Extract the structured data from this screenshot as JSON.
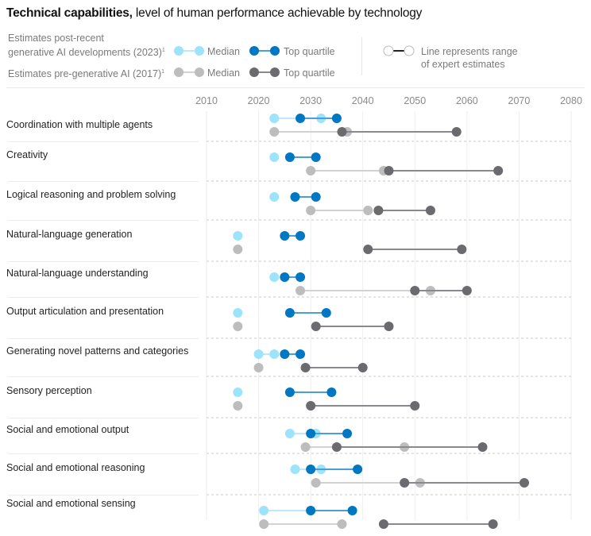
{
  "title": {
    "bold": "Technical capabilities,",
    "rest": " level of human performance achievable by technology"
  },
  "legend": {
    "post_label_line1": "Estimates post-recent",
    "post_label_line2": "generative AI developments (2023)",
    "pre_label": "Estimates pre-generative AI (2017)",
    "footnote": "1",
    "median": "Median",
    "top_quartile": "Top quartile",
    "range_line1": "Line represents range",
    "range_line2": "of expert estimates"
  },
  "colors": {
    "median_2023": "#9de3fb",
    "top_2023": "#0077c2",
    "median_2017": "#bdbdbe",
    "top_2017": "#6b6b6f",
    "line_2023_median": "#bde9fa",
    "line_2023_top": "#4a9fd6",
    "line_2017_median": "#d2d2d2",
    "line_2017_top": "#8a8a8e"
  },
  "chart_data": {
    "type": "dumbbell",
    "title": "Technical capabilities, level of human performance achievable by technology",
    "xlabel": "",
    "ylabel": "",
    "xlim": [
      2010,
      2080
    ],
    "xticks": [
      2010,
      2020,
      2030,
      2040,
      2050,
      2060,
      2070,
      2080
    ],
    "grid": true,
    "legend_position": "top",
    "series_names": [
      "2023 Median",
      "2023 Top quartile",
      "2017 Median",
      "2017 Top quartile"
    ],
    "categories": [
      "Coordination with multiple agents",
      "Creativity",
      "Logical reasoning and problem solving",
      "Natural-language generation",
      "Natural-language understanding",
      "Output articulation and presentation",
      "Generating novel patterns and categories",
      "Sensory perception",
      "Social and emotional output",
      "Social and emotional reasoning",
      "Social and emotional sensing"
    ],
    "rows": [
      {
        "e2023": {
          "median": [
            2023,
            2032
          ],
          "top": [
            2028,
            2035
          ]
        },
        "e2017": {
          "median": [
            2023,
            2037
          ],
          "top": [
            2036,
            2058
          ]
        }
      },
      {
        "e2023": {
          "median": [
            2023,
            2023
          ],
          "top": [
            2026,
            2031
          ]
        },
        "e2017": {
          "median": [
            2030,
            2044
          ],
          "top": [
            2045,
            2066
          ]
        }
      },
      {
        "e2023": {
          "median": [
            2023,
            2023
          ],
          "top": [
            2027,
            2031
          ]
        },
        "e2017": {
          "median": [
            2030,
            2041
          ],
          "top": [
            2043,
            2053
          ]
        }
      },
      {
        "e2023": {
          "median": [
            2016,
            2016
          ],
          "top": [
            2025,
            2028
          ]
        },
        "e2017": {
          "median": [
            2016,
            2016
          ],
          "top": [
            2041,
            2059
          ]
        }
      },
      {
        "e2023": {
          "median": [
            2023,
            2023
          ],
          "top": [
            2025,
            2028
          ]
        },
        "e2017": {
          "median": [
            2028,
            2053
          ],
          "top": [
            2050,
            2060
          ]
        }
      },
      {
        "e2023": {
          "median": [
            2016,
            2016
          ],
          "top": [
            2026,
            2033
          ]
        },
        "e2017": {
          "median": [
            2016,
            2016
          ],
          "top": [
            2031,
            2045
          ]
        }
      },
      {
        "e2023": {
          "median": [
            2020,
            2023
          ],
          "top": [
            2025,
            2028
          ]
        },
        "e2017": {
          "median": [
            2020,
            2020
          ],
          "top": [
            2029,
            2040
          ]
        }
      },
      {
        "e2023": {
          "median": [
            2016,
            2016
          ],
          "top": [
            2026,
            2034
          ]
        },
        "e2017": {
          "median": [
            2016,
            2016
          ],
          "top": [
            2030,
            2050
          ]
        }
      },
      {
        "e2023": {
          "median": [
            2026,
            2031
          ],
          "top": [
            2030,
            2037
          ]
        },
        "e2017": {
          "median": [
            2029,
            2048
          ],
          "top": [
            2035,
            2063
          ]
        }
      },
      {
        "e2023": {
          "median": [
            2027,
            2032
          ],
          "top": [
            2030,
            2039
          ]
        },
        "e2017": {
          "median": [
            2031,
            2051
          ],
          "top": [
            2048,
            2071
          ]
        }
      },
      {
        "e2023": {
          "median": [
            2021,
            2030
          ],
          "top": [
            2030,
            2038
          ]
        },
        "e2017": {
          "median": [
            2021,
            2036
          ],
          "top": [
            2044,
            2065
          ]
        }
      }
    ]
  }
}
